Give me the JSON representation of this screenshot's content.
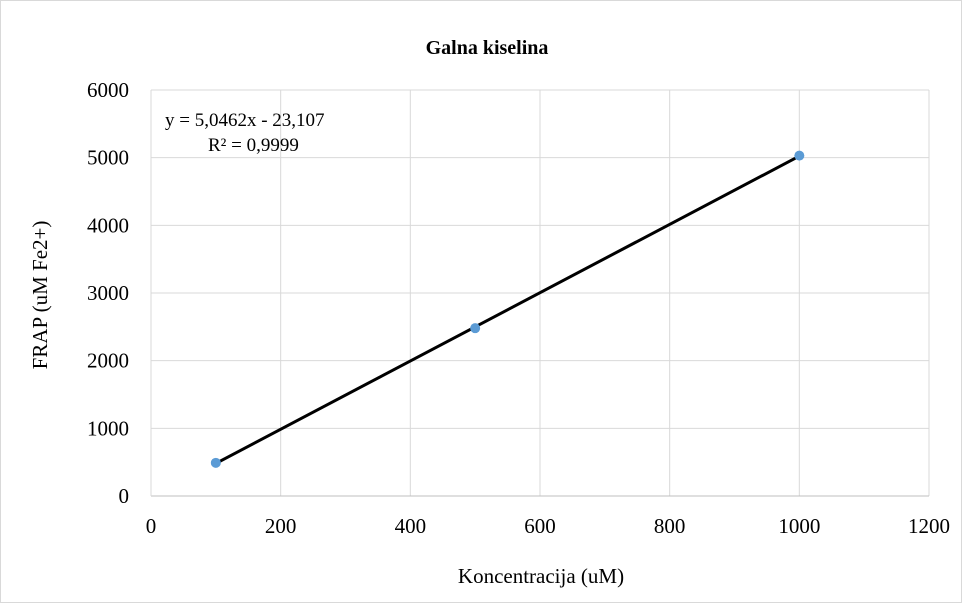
{
  "chart_data": {
    "type": "scatter",
    "title": "Galna kiselina",
    "xlabel": "Koncentracija (uM)",
    "ylabel": "FRAP (uM Fe2+)",
    "xlim": [
      0,
      1200
    ],
    "ylim": [
      0,
      6000
    ],
    "x_ticks": [
      0,
      200,
      400,
      600,
      800,
      1000,
      1200
    ],
    "y_ticks": [
      0,
      1000,
      2000,
      3000,
      4000,
      5000,
      6000
    ],
    "x_tick_labels": [
      "0",
      "200",
      "400",
      "600",
      "800",
      "1000",
      "1200"
    ],
    "y_tick_labels": [
      "0",
      "1000",
      "2000",
      "3000",
      "4000",
      "5000",
      "6000"
    ],
    "grid": true,
    "series": [
      {
        "x": [
          100,
          500,
          1000
        ],
        "y": [
          490,
          2480,
          5030
        ],
        "color": "#5b9bd5"
      }
    ],
    "trendline": {
      "type": "linear",
      "slope": 5.0462,
      "intercept": -23.107,
      "x_range": [
        100,
        1000
      ],
      "color": "#000000"
    },
    "annotations": [
      "y = 5,0462x - 23,107",
      "R² = 0,9999"
    ]
  }
}
